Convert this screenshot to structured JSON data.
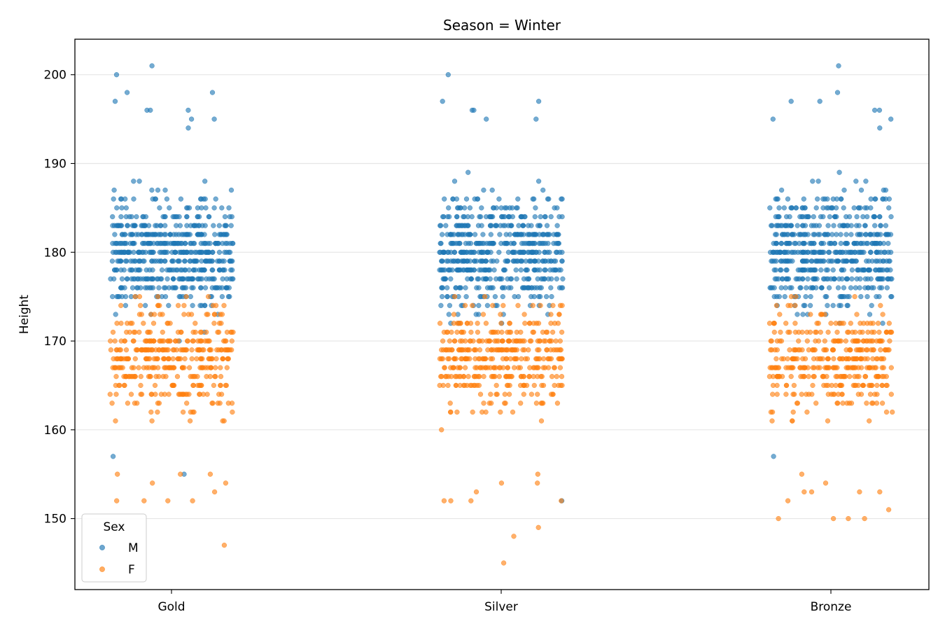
{
  "chart_data": {
    "type": "scatter",
    "title": "Season = Winter",
    "xlabel": "",
    "ylabel": "Height",
    "categories": [
      "Gold",
      "Silver",
      "Bronze"
    ],
    "ylim": [
      142,
      204
    ],
    "y_ticks": [
      150,
      160,
      170,
      180,
      190,
      200
    ],
    "grid": "horizontal",
    "legend": {
      "title": "Sex",
      "placement": "lower-left",
      "entries": [
        "M",
        "F"
      ]
    },
    "series": [
      {
        "name": "M",
        "color": "#1f77b4",
        "min": [
          155,
          152,
          157
        ],
        "max": [
          201,
          200,
          201
        ],
        "outliers": [
          {
            "category": "Gold",
            "y": [
              201,
              200,
              198,
              198,
              197,
              196,
              196,
              196,
              195,
              195,
              194,
              157,
              155
            ]
          },
          {
            "category": "Silver",
            "y": [
              200,
              197,
              197,
              196,
              196,
              195,
              195,
              152
            ]
          },
          {
            "category": "Bronze",
            "y": [
              201,
              198,
              197,
              197,
              196,
              196,
              195,
              195,
              194,
              157
            ]
          }
        ]
      },
      {
        "name": "F",
        "color": "#ff7f0e",
        "min": [
          147,
          145,
          150
        ],
        "max": [
          184,
          187,
          187
        ],
        "outliers": [
          {
            "category": "Gold",
            "y": [
              155,
              155,
              155,
              154,
              154,
              153,
              152,
              152,
              152,
              152,
              147
            ]
          },
          {
            "category": "Silver",
            "y": [
              155,
              154,
              154,
              153,
              152,
              152,
              152,
              152,
              149,
              148,
              145
            ]
          },
          {
            "category": "Bronze",
            "y": [
              155,
              154,
              153,
              153,
              153,
              153,
              152,
              151,
              150,
              150,
              150,
              150
            ]
          }
        ]
      }
    ]
  }
}
